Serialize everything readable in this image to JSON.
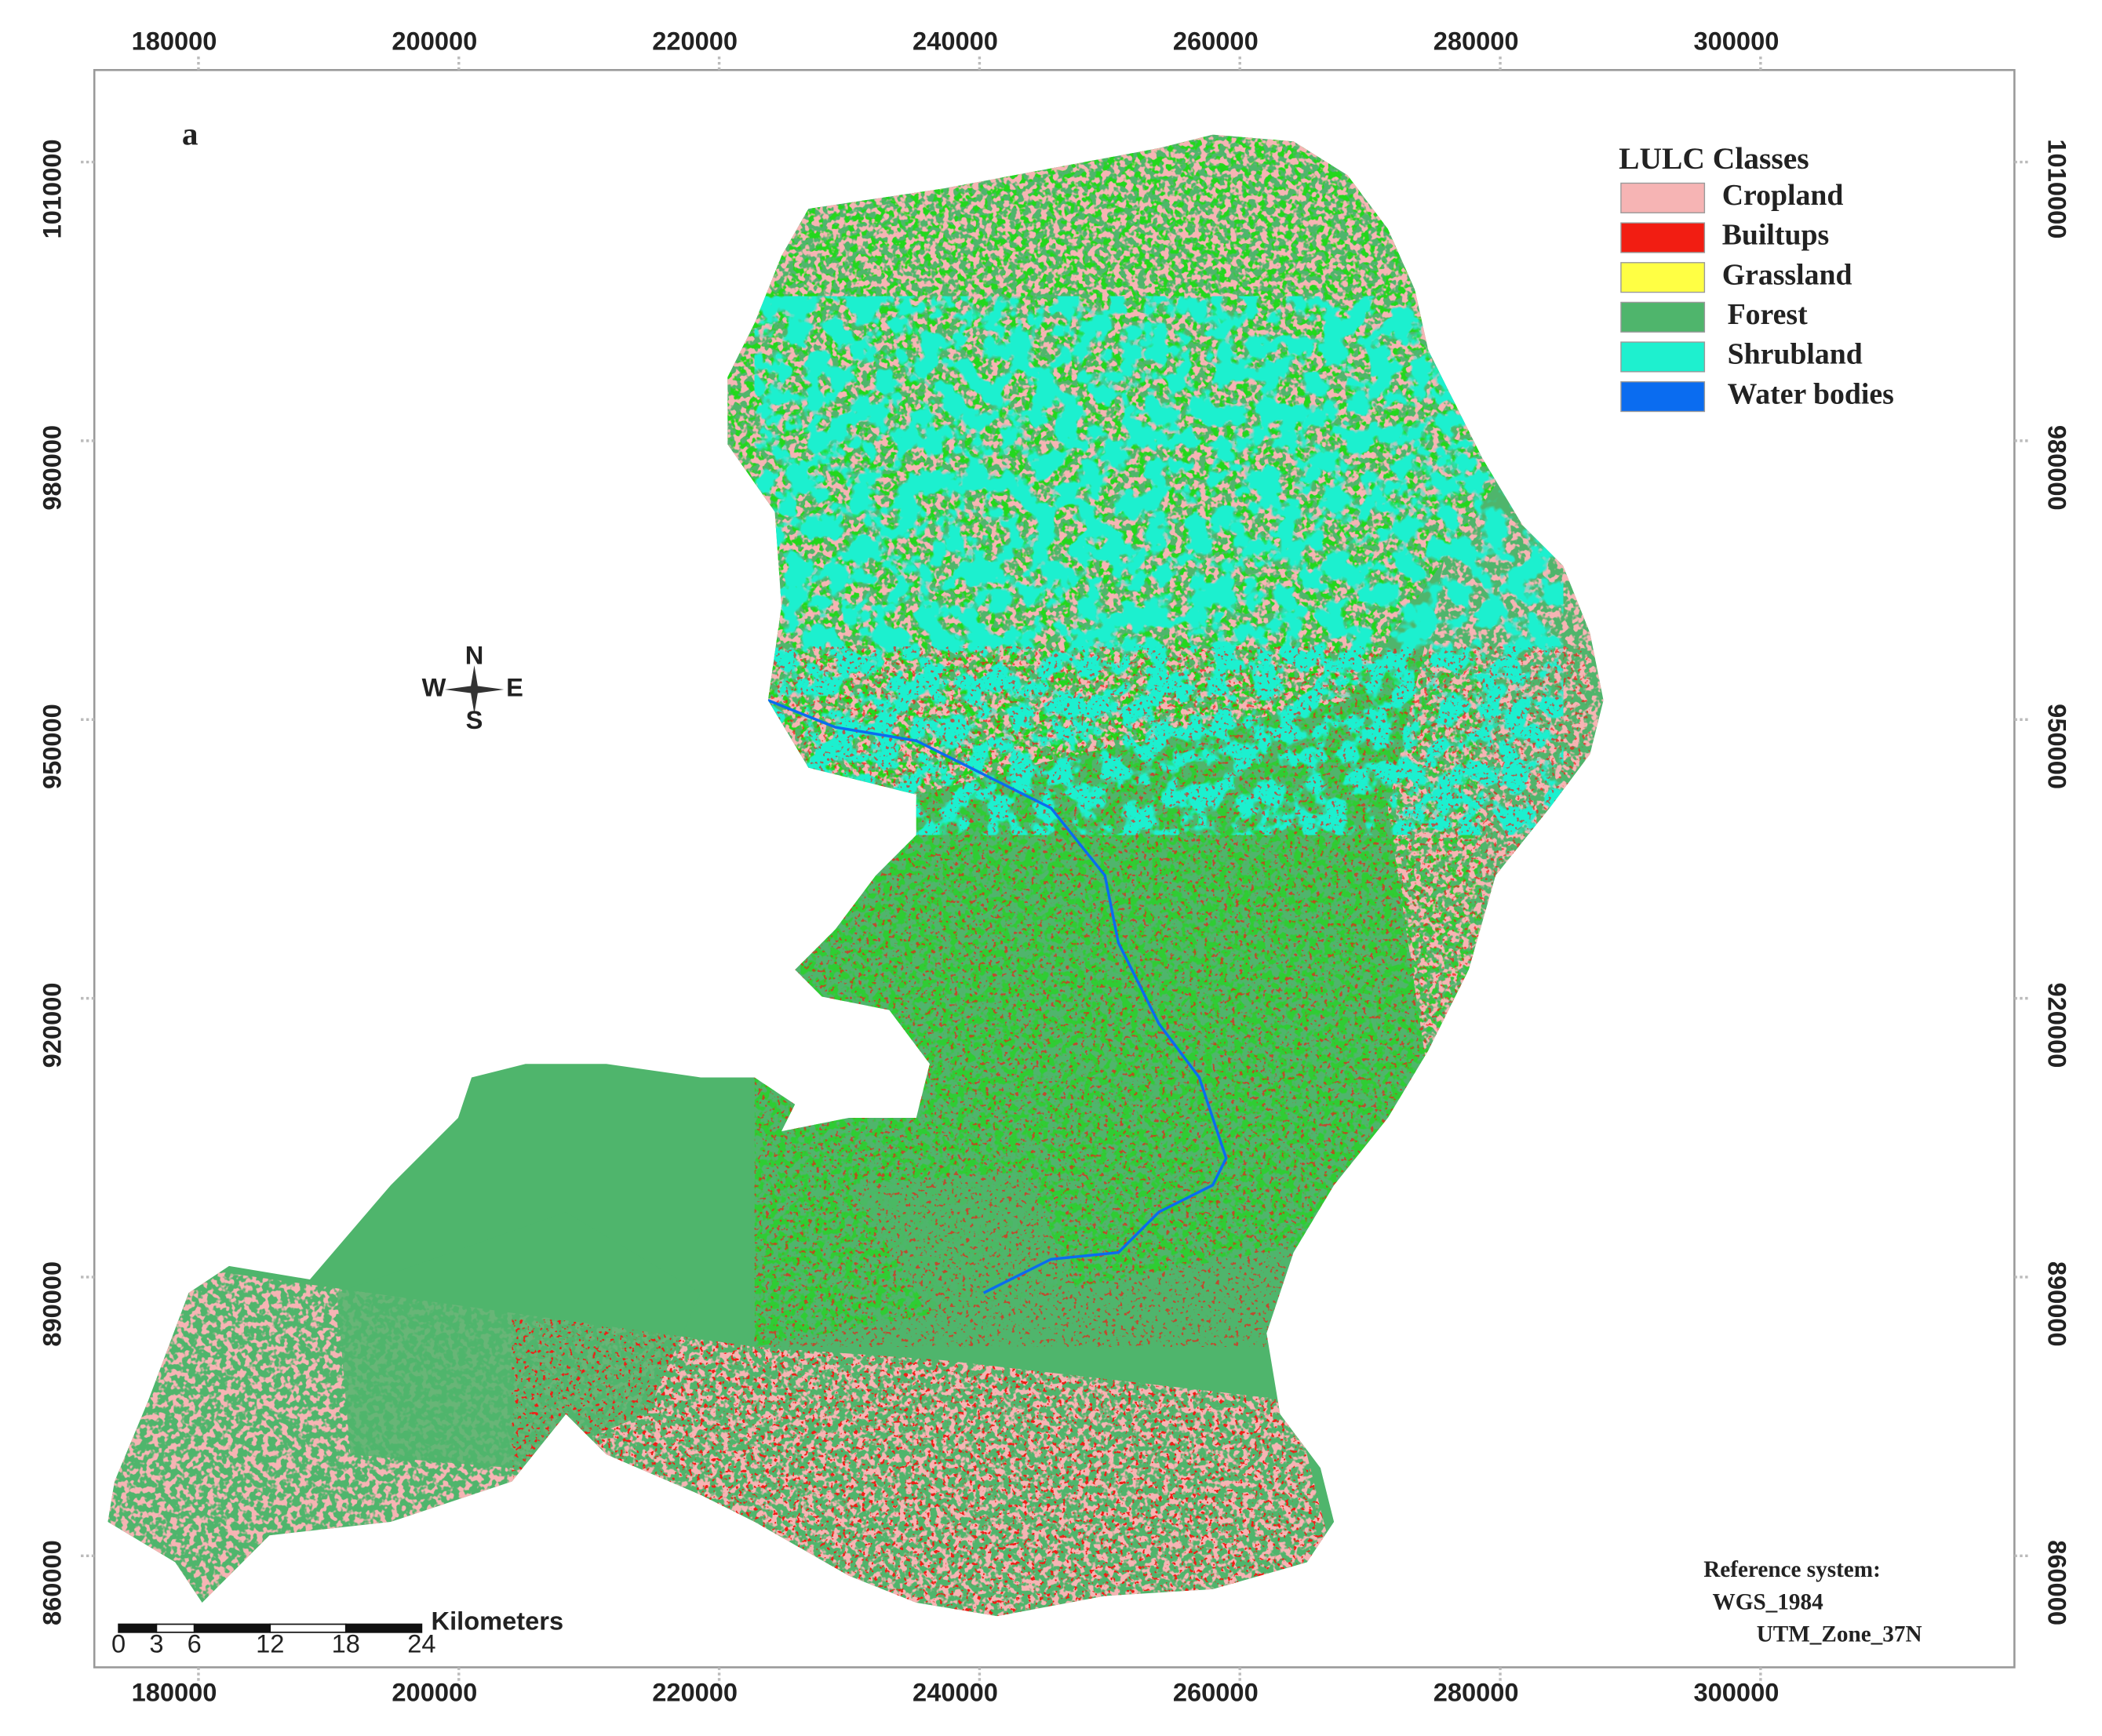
{
  "panel_label": "a",
  "legend": {
    "title": "LULC Classes",
    "items": [
      {
        "label": "Cropland",
        "color": "#f6b4b4"
      },
      {
        "label": "Builtups",
        "color": "#f21d12"
      },
      {
        "label": "Grassland",
        "color": "#ffff44"
      },
      {
        "label": "Forest",
        "color": "#4fb56c"
      },
      {
        "label": "Shrubland",
        "color": "#1ef0cf"
      },
      {
        "label": "Water bodies",
        "color": "#0a6cf0"
      }
    ]
  },
  "axes": {
    "xlim": [
      172000,
      319500
    ],
    "ylim": [
      848000,
      1019900
    ],
    "xticks": [
      180000,
      200000,
      220000,
      240000,
      260000,
      280000,
      300000
    ],
    "yticks": [
      860000,
      890000,
      920000,
      950000,
      980000,
      1010000
    ]
  },
  "scale_bar": {
    "ticks": [
      0,
      3,
      6,
      12,
      18,
      24
    ],
    "unit": "Kilometers"
  },
  "reference_system": [
    "Reference system:",
    "WGS_1984",
    "UTM_Zone_37N"
  ],
  "compass": [
    "N",
    "E",
    "S",
    "W"
  ]
}
